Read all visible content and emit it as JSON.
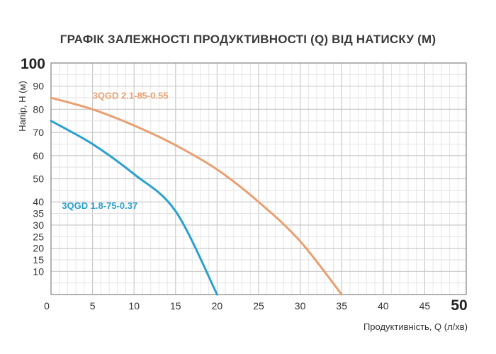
{
  "chart_data": {
    "type": "line",
    "title": "ГРАФІК ЗАЛЕЖНОСТІ ПРОДУКТИВНОСТІ (Q) ВІД НАТИСКУ (М)",
    "xlabel": "Продуктивність, Q (л/хв)",
    "ylabel": "Напір, Н (м)",
    "xlim": [
      0,
      50
    ],
    "ylim": [
      0,
      100
    ],
    "x_ticks": [
      {
        "value": 0,
        "label": "0"
      },
      {
        "value": 5,
        "label": "5"
      },
      {
        "value": 10,
        "label": "10"
      },
      {
        "value": 15,
        "label": "15"
      },
      {
        "value": 20,
        "label": "20"
      },
      {
        "value": 25,
        "label": "25"
      },
      {
        "value": 30,
        "label": "30"
      },
      {
        "value": 35,
        "label": "35"
      },
      {
        "value": 40,
        "label": "40"
      },
      {
        "value": 45,
        "label": "45"
      },
      {
        "value": 50,
        "label": "50"
      }
    ],
    "y_ticks": [
      {
        "value": 10,
        "label": "10"
      },
      {
        "value": 15,
        "label": "15"
      },
      {
        "value": 20,
        "label": "20"
      },
      {
        "value": 25,
        "label": "25"
      },
      {
        "value": 30,
        "label": "30"
      },
      {
        "value": 35,
        "label": "35"
      },
      {
        "value": 40,
        "label": "40"
      },
      {
        "value": 50,
        "label": "50"
      },
      {
        "value": 60,
        "label": "60"
      },
      {
        "value": 70,
        "label": "70"
      },
      {
        "value": 80,
        "label": "80"
      },
      {
        "value": 90,
        "label": "90"
      },
      {
        "value": 100,
        "label": "100"
      }
    ],
    "grid": true,
    "series": [
      {
        "name": "3QGD 2.1-85-0.55",
        "color": "#e8a071",
        "x": [
          0,
          5,
          10,
          15,
          20,
          25,
          30,
          35
        ],
        "y": [
          85,
          80,
          73,
          64.5,
          54,
          40,
          23,
          0
        ]
      },
      {
        "name": "3QGD 1.8-75-0.37",
        "color": "#2aa0cf",
        "x": [
          0,
          5,
          10,
          15,
          20
        ],
        "y": [
          75,
          65,
          52,
          36,
          0
        ]
      }
    ]
  }
}
